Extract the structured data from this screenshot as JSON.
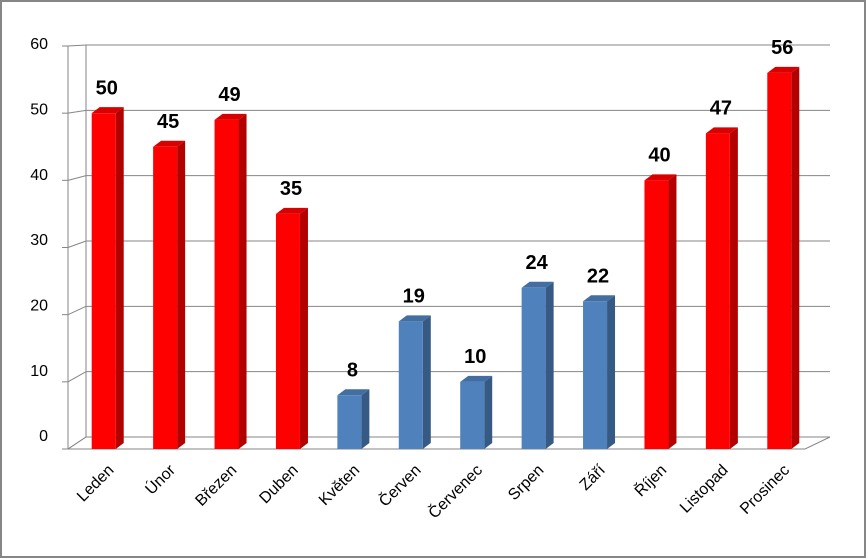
{
  "chart_data": {
    "type": "bar",
    "categories": [
      "Leden",
      "Únor",
      "Březen",
      "Duben",
      "Květen",
      "Červen",
      "Červenec",
      "Srpen",
      "Září",
      "Říjen",
      "Listopad",
      "Prosinec"
    ],
    "values": [
      50,
      45,
      49,
      35,
      8,
      19,
      10,
      24,
      22,
      40,
      47,
      56
    ],
    "colors": [
      "#ff0000",
      "#ff0000",
      "#ff0000",
      "#ff0000",
      "#4f81bd",
      "#4f81bd",
      "#4f81bd",
      "#4f81bd",
      "#4f81bd",
      "#ff0000",
      "#ff0000",
      "#ff0000"
    ],
    "ylim": [
      0,
      60
    ],
    "yticks": [
      0,
      10,
      20,
      30,
      40,
      50,
      60
    ],
    "grid": true
  }
}
